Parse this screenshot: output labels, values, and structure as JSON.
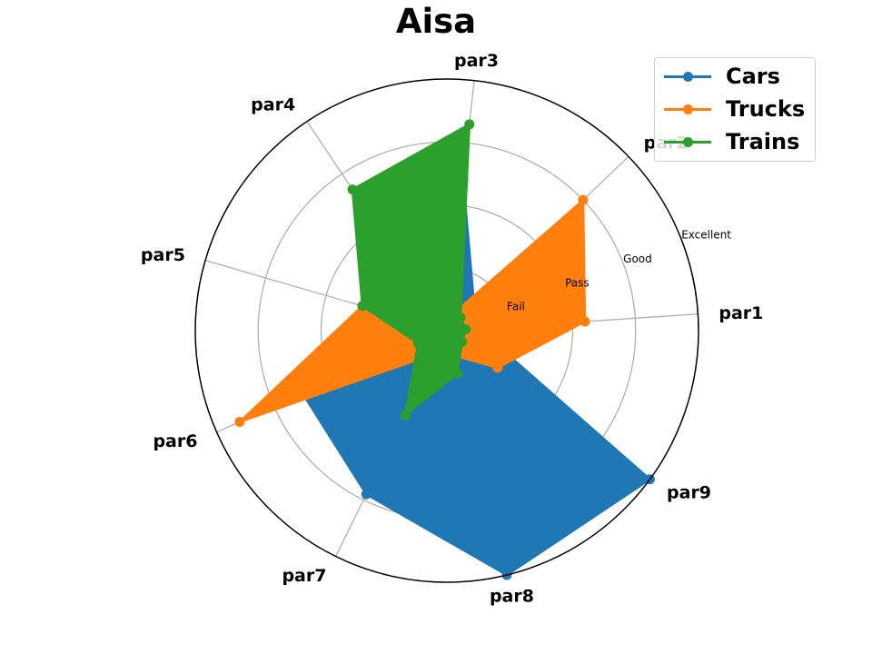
{
  "chart_data": {
    "type": "radar",
    "title": "Aisa",
    "categories": [
      "par1",
      "par2",
      "par3",
      "par4",
      "par5",
      "par6",
      "par7",
      "par8",
      "par9"
    ],
    "radial_tick_labels": [
      "Fail",
      "Pass",
      "Good",
      "Excellent"
    ],
    "rlim": [
      0,
      4
    ],
    "grid": true,
    "legend_position": "top-right",
    "series": [
      {
        "name": "Cars",
        "color": "#1f77b4",
        "values": [
          0.5,
          0.6,
          2.4,
          0.9,
          0.0,
          2.5,
          2.9,
          4.0,
          4.0
        ]
      },
      {
        "name": "Trucks",
        "color": "#ff7f0e",
        "values": [
          2.2,
          3.0,
          0.2,
          0.2,
          1.4,
          3.6,
          0.4,
          0.4,
          1.0
        ]
      },
      {
        "name": "Trains",
        "color": "#2ca02c",
        "values": [
          0.3,
          0.3,
          3.3,
          2.7,
          1.4,
          0.5,
          1.5,
          0.7,
          0.3
        ]
      }
    ]
  }
}
